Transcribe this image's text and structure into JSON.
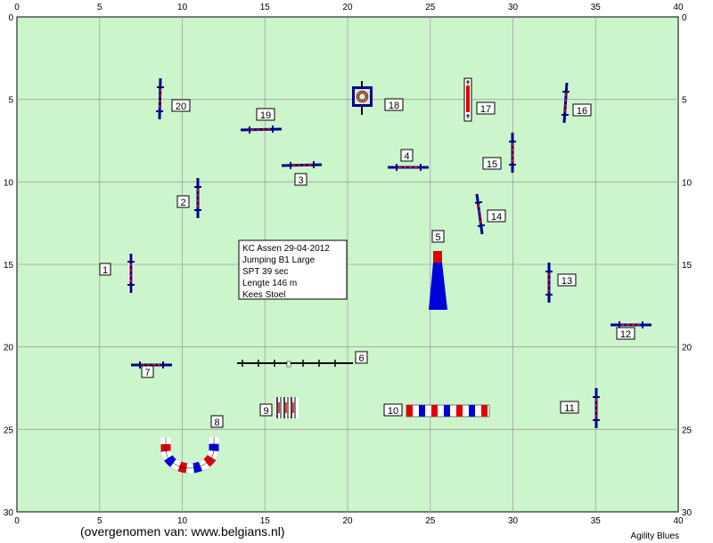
{
  "course": {
    "axis_x_ticks": [
      "0",
      "5",
      "10",
      "15",
      "20",
      "25",
      "30",
      "35",
      "40"
    ],
    "axis_y_ticks": [
      "0",
      "5",
      "10",
      "15",
      "20",
      "25",
      "30"
    ],
    "info": {
      "line1": "KC Assen 29-04-2012",
      "line2": "Jumping B1 Large",
      "line3": "SPT 39 sec",
      "line4": "Lengte 146 m",
      "line5": "Kees Stoel"
    },
    "obstacles": [
      {
        "num": "1",
        "kind": "jump",
        "x": 7,
        "y": 15.5
      },
      {
        "num": "2",
        "kind": "jump",
        "x": 11,
        "y": 11
      },
      {
        "num": "3",
        "kind": "jump",
        "x": 16.5,
        "y": 9.0
      },
      {
        "num": "4",
        "kind": "jump",
        "x": 23.5,
        "y": 9.1
      },
      {
        "num": "5",
        "kind": "dogwalk-a",
        "x": 25.5,
        "y": 16
      },
      {
        "num": "6",
        "kind": "walk",
        "x": 17,
        "y": 21.0
      },
      {
        "num": "7",
        "kind": "jump",
        "x": 8,
        "y": 21.1
      },
      {
        "num": "8",
        "kind": "tunnel-u",
        "x": 10,
        "y": 26
      },
      {
        "num": "9",
        "kind": "weave",
        "x": 16.5,
        "y": 23.8
      },
      {
        "num": "10",
        "kind": "tunnel",
        "x": 26,
        "y": 23.8
      },
      {
        "num": "11",
        "kind": "jump",
        "x": 35,
        "y": 23.8
      },
      {
        "num": "12",
        "kind": "jump",
        "x": 37,
        "y": 18.6
      },
      {
        "num": "13",
        "kind": "jump",
        "x": 32.2,
        "y": 16.4
      },
      {
        "num": "14",
        "kind": "jump",
        "x": 28.2,
        "y": 12
      },
      {
        "num": "15",
        "kind": "jump",
        "x": 30,
        "y": 8.5
      },
      {
        "num": "16",
        "kind": "jump",
        "x": 33.2,
        "y": 5.5
      },
      {
        "num": "17",
        "kind": "seesaw",
        "x": 27.2,
        "y": 5
      },
      {
        "num": "18",
        "kind": "table",
        "x": 20.8,
        "y": 5.1
      },
      {
        "num": "19",
        "kind": "jump",
        "x": 15,
        "y": 6.8
      },
      {
        "num": "20",
        "kind": "jump",
        "x": 8.7,
        "y": 5.5
      }
    ]
  },
  "footer": {
    "credit": "(overgenomen van: www.belgians.nl)",
    "brand": "Agility Blues"
  },
  "colors": {
    "field": "#ccf5cc",
    "grid": "#a0a0a0",
    "bar": "#00008b",
    "red": "#e00000",
    "blue": "#0000dd"
  }
}
